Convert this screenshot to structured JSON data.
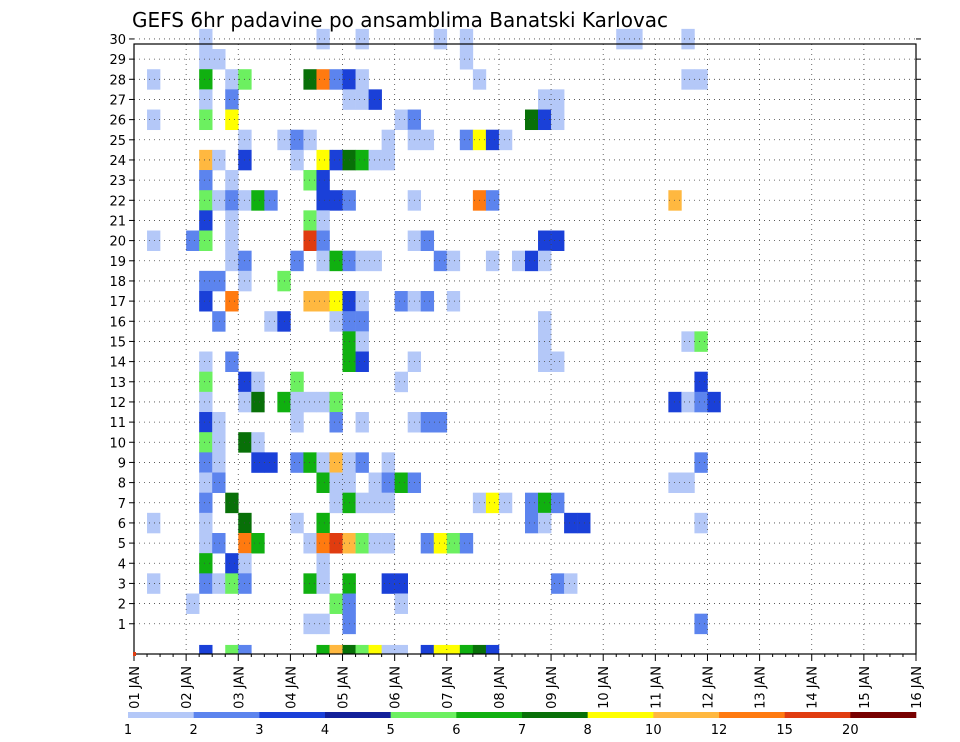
{
  "chart_data": {
    "type": "heatmap",
    "title": "GEFS 6hr padavine po ansamblima Banatski Karlovac",
    "x_tick_labels": [
      "01 JAN",
      "02 JAN",
      "03 JAN",
      "04 JAN",
      "05 JAN",
      "06 JAN",
      "07 JAN",
      "08 JAN",
      "09 JAN",
      "10 JAN",
      "11 JAN",
      "12 JAN",
      "13 JAN",
      "14 JAN",
      "15 JAN",
      "16 JAN"
    ],
    "y_tick_labels": [
      "1",
      "2",
      "3",
      "4",
      "5",
      "6",
      "7",
      "8",
      "9",
      "10",
      "11",
      "12",
      "13",
      "14",
      "15",
      "16",
      "17",
      "18",
      "19",
      "20",
      "21",
      "22",
      "23",
      "24",
      "25",
      "26",
      "27",
      "28",
      "29",
      "30"
    ],
    "xlim": [
      0,
      15
    ],
    "ylim": [
      0,
      30
    ],
    "grid": true,
    "colorbar": {
      "labels": [
        "1",
        "2",
        "3",
        "4",
        "5",
        "6",
        "7",
        "8",
        "10",
        "12",
        "15",
        "20"
      ],
      "colors": [
        "#b4c8f8",
        "#5c84ee",
        "#1a40d8",
        "#12209a",
        "#6cf060",
        "#10b010",
        "#087008",
        "#ffff00",
        "#ffb840",
        "#ff7a10",
        "#e03c10",
        "#780000"
      ]
    },
    "cells_note": "each cell: [member, time_step_index (6h steps from 01 JAN 00z), color_class_index 0-11]",
    "cells": [
      [
        30,
        5,
        0
      ],
      [
        30,
        14,
        0
      ],
      [
        30,
        17,
        0
      ],
      [
        30,
        23,
        0
      ],
      [
        30,
        25,
        0
      ],
      [
        30,
        37,
        0
      ],
      [
        30,
        38,
        0
      ],
      [
        30,
        42,
        0
      ],
      [
        29,
        5,
        0
      ],
      [
        29,
        6,
        0
      ],
      [
        29,
        25,
        0
      ],
      [
        28,
        1,
        0
      ],
      [
        28,
        5,
        5
      ],
      [
        28,
        7,
        0
      ],
      [
        28,
        8,
        4
      ],
      [
        28,
        13,
        6
      ],
      [
        28,
        14,
        9
      ],
      [
        28,
        15,
        1
      ],
      [
        28,
        16,
        2
      ],
      [
        28,
        17,
        0
      ],
      [
        28,
        26,
        0
      ],
      [
        28,
        42,
        0
      ],
      [
        28,
        43,
        0
      ],
      [
        27,
        5,
        0
      ],
      [
        27,
        7,
        1
      ],
      [
        27,
        16,
        0
      ],
      [
        27,
        17,
        0
      ],
      [
        27,
        18,
        2
      ],
      [
        27,
        31,
        0
      ],
      [
        27,
        32,
        0
      ],
      [
        26,
        1,
        0
      ],
      [
        26,
        5,
        4
      ],
      [
        26,
        7,
        7
      ],
      [
        26,
        20,
        0
      ],
      [
        26,
        21,
        1
      ],
      [
        26,
        30,
        6
      ],
      [
        26,
        31,
        2
      ],
      [
        26,
        32,
        0
      ],
      [
        25,
        8,
        0
      ],
      [
        25,
        11,
        0
      ],
      [
        25,
        12,
        1
      ],
      [
        25,
        13,
        0
      ],
      [
        25,
        19,
        0
      ],
      [
        25,
        21,
        0
      ],
      [
        25,
        22,
        0
      ],
      [
        25,
        25,
        1
      ],
      [
        25,
        26,
        7
      ],
      [
        25,
        27,
        2
      ],
      [
        25,
        28,
        0
      ],
      [
        24,
        5,
        8
      ],
      [
        24,
        6,
        0
      ],
      [
        24,
        8,
        2
      ],
      [
        24,
        12,
        0
      ],
      [
        24,
        14,
        7
      ],
      [
        24,
        15,
        2
      ],
      [
        24,
        16,
        6
      ],
      [
        24,
        17,
        5
      ],
      [
        24,
        18,
        0
      ],
      [
        24,
        19,
        0
      ],
      [
        23,
        5,
        1
      ],
      [
        23,
        7,
        0
      ],
      [
        23,
        13,
        4
      ],
      [
        23,
        14,
        2
      ],
      [
        22,
        5,
        4
      ],
      [
        22,
        6,
        0
      ],
      [
        22,
        7,
        1
      ],
      [
        22,
        8,
        0
      ],
      [
        22,
        9,
        5
      ],
      [
        22,
        10,
        1
      ],
      [
        22,
        14,
        2
      ],
      [
        22,
        15,
        2
      ],
      [
        22,
        16,
        1
      ],
      [
        22,
        21,
        0
      ],
      [
        22,
        26,
        9
      ],
      [
        22,
        27,
        1
      ],
      [
        22,
        41,
        8
      ],
      [
        21,
        5,
        2
      ],
      [
        21,
        7,
        0
      ],
      [
        21,
        13,
        4
      ],
      [
        21,
        14,
        0
      ],
      [
        20,
        1,
        0
      ],
      [
        20,
        4,
        1
      ],
      [
        20,
        5,
        4
      ],
      [
        20,
        7,
        0
      ],
      [
        20,
        13,
        10
      ],
      [
        20,
        14,
        1
      ],
      [
        20,
        21,
        0
      ],
      [
        20,
        22,
        1
      ],
      [
        20,
        31,
        2
      ],
      [
        20,
        32,
        2
      ],
      [
        19,
        7,
        0
      ],
      [
        19,
        8,
        1
      ],
      [
        19,
        12,
        1
      ],
      [
        19,
        14,
        0
      ],
      [
        19,
        15,
        5
      ],
      [
        19,
        16,
        1
      ],
      [
        19,
        17,
        0
      ],
      [
        19,
        18,
        0
      ],
      [
        19,
        23,
        1
      ],
      [
        19,
        24,
        0
      ],
      [
        19,
        27,
        0
      ],
      [
        19,
        29,
        0
      ],
      [
        19,
        30,
        2
      ],
      [
        19,
        31,
        0
      ],
      [
        18,
        5,
        1
      ],
      [
        18,
        6,
        1
      ],
      [
        18,
        8,
        0
      ],
      [
        18,
        11,
        4
      ],
      [
        17,
        5,
        2
      ],
      [
        17,
        7,
        9
      ],
      [
        17,
        13,
        8
      ],
      [
        17,
        14,
        8
      ],
      [
        17,
        15,
        7
      ],
      [
        17,
        16,
        2
      ],
      [
        17,
        17,
        0
      ],
      [
        17,
        20,
        1
      ],
      [
        17,
        21,
        0
      ],
      [
        17,
        22,
        1
      ],
      [
        17,
        24,
        0
      ],
      [
        16,
        6,
        1
      ],
      [
        16,
        10,
        0
      ],
      [
        16,
        11,
        2
      ],
      [
        16,
        15,
        0
      ],
      [
        16,
        16,
        1
      ],
      [
        16,
        17,
        1
      ],
      [
        16,
        31,
        0
      ],
      [
        15,
        16,
        5
      ],
      [
        15,
        17,
        0
      ],
      [
        15,
        31,
        0
      ],
      [
        15,
        42,
        0
      ],
      [
        15,
        43,
        4
      ],
      [
        14,
        5,
        0
      ],
      [
        14,
        7,
        1
      ],
      [
        14,
        16,
        5
      ],
      [
        14,
        17,
        2
      ],
      [
        14,
        21,
        0
      ],
      [
        14,
        31,
        0
      ],
      [
        14,
        32,
        0
      ],
      [
        13,
        5,
        4
      ],
      [
        13,
        8,
        2
      ],
      [
        13,
        9,
        0
      ],
      [
        13,
        12,
        4
      ],
      [
        13,
        20,
        0
      ],
      [
        13,
        43,
        2
      ],
      [
        12,
        5,
        0
      ],
      [
        12,
        8,
        0
      ],
      [
        12,
        9,
        6
      ],
      [
        12,
        11,
        5
      ],
      [
        12,
        12,
        0
      ],
      [
        12,
        13,
        0
      ],
      [
        12,
        14,
        0
      ],
      [
        12,
        15,
        4
      ],
      [
        12,
        41,
        2
      ],
      [
        12,
        42,
        0
      ],
      [
        12,
        43,
        1
      ],
      [
        12,
        44,
        2
      ],
      [
        11,
        5,
        2
      ],
      [
        11,
        6,
        0
      ],
      [
        11,
        12,
        0
      ],
      [
        11,
        15,
        1
      ],
      [
        11,
        17,
        0
      ],
      [
        11,
        21,
        0
      ],
      [
        11,
        22,
        1
      ],
      [
        11,
        23,
        1
      ],
      [
        10,
        5,
        4
      ],
      [
        10,
        6,
        0
      ],
      [
        10,
        8,
        6
      ],
      [
        10,
        9,
        0
      ],
      [
        9,
        5,
        1
      ],
      [
        9,
        6,
        0
      ],
      [
        9,
        9,
        2
      ],
      [
        9,
        10,
        2
      ],
      [
        9,
        12,
        1
      ],
      [
        9,
        13,
        5
      ],
      [
        9,
        14,
        0
      ],
      [
        9,
        15,
        8
      ],
      [
        9,
        16,
        0
      ],
      [
        9,
        17,
        1
      ],
      [
        9,
        19,
        0
      ],
      [
        9,
        43,
        1
      ],
      [
        8,
        5,
        0
      ],
      [
        8,
        6,
        1
      ],
      [
        8,
        14,
        5
      ],
      [
        8,
        15,
        0
      ],
      [
        8,
        16,
        0
      ],
      [
        8,
        18,
        0
      ],
      [
        8,
        19,
        1
      ],
      [
        8,
        20,
        5
      ],
      [
        8,
        21,
        1
      ],
      [
        8,
        41,
        0
      ],
      [
        8,
        42,
        0
      ],
      [
        7,
        5,
        1
      ],
      [
        7,
        7,
        6
      ],
      [
        7,
        15,
        0
      ],
      [
        7,
        16,
        5
      ],
      [
        7,
        17,
        0
      ],
      [
        7,
        18,
        0
      ],
      [
        7,
        19,
        0
      ],
      [
        7,
        26,
        0
      ],
      [
        7,
        27,
        7
      ],
      [
        7,
        28,
        0
      ],
      [
        7,
        30,
        1
      ],
      [
        7,
        31,
        5
      ],
      [
        7,
        32,
        1
      ],
      [
        6,
        1,
        0
      ],
      [
        6,
        5,
        0
      ],
      [
        6,
        8,
        6
      ],
      [
        6,
        12,
        0
      ],
      [
        6,
        14,
        5
      ],
      [
        6,
        30,
        1
      ],
      [
        6,
        31,
        0
      ],
      [
        6,
        33,
        2
      ],
      [
        6,
        34,
        2
      ],
      [
        6,
        43,
        0
      ],
      [
        5,
        5,
        0
      ],
      [
        5,
        6,
        1
      ],
      [
        5,
        8,
        9
      ],
      [
        5,
        9,
        5
      ],
      [
        5,
        13,
        0
      ],
      [
        5,
        14,
        9
      ],
      [
        5,
        15,
        10
      ],
      [
        5,
        16,
        8
      ],
      [
        5,
        17,
        4
      ],
      [
        5,
        18,
        0
      ],
      [
        5,
        19,
        0
      ],
      [
        5,
        22,
        1
      ],
      [
        5,
        23,
        7
      ],
      [
        5,
        24,
        4
      ],
      [
        5,
        25,
        1
      ],
      [
        4,
        5,
        5
      ],
      [
        4,
        7,
        2
      ],
      [
        4,
        8,
        0
      ],
      [
        4,
        14,
        0
      ],
      [
        3,
        1,
        0
      ],
      [
        3,
        5,
        1
      ],
      [
        3,
        6,
        0
      ],
      [
        3,
        7,
        4
      ],
      [
        3,
        8,
        1
      ],
      [
        3,
        13,
        5
      ],
      [
        3,
        14,
        0
      ],
      [
        3,
        16,
        5
      ],
      [
        3,
        19,
        2
      ],
      [
        3,
        20,
        2
      ],
      [
        3,
        32,
        1
      ],
      [
        3,
        33,
        0
      ],
      [
        2,
        4,
        0
      ],
      [
        2,
        15,
        4
      ],
      [
        2,
        16,
        1
      ],
      [
        2,
        20,
        0
      ],
      [
        1,
        13,
        0
      ],
      [
        1,
        14,
        0
      ],
      [
        1,
        16,
        1
      ],
      [
        1,
        43,
        1
      ],
      [
        0,
        5,
        2
      ],
      [
        0,
        7,
        4
      ],
      [
        0,
        8,
        1
      ],
      [
        0,
        14,
        5
      ],
      [
        0,
        15,
        8
      ],
      [
        0,
        16,
        6
      ],
      [
        0,
        17,
        4
      ],
      [
        0,
        18,
        7
      ],
      [
        0,
        19,
        0
      ],
      [
        0,
        20,
        0
      ],
      [
        0,
        22,
        2
      ],
      [
        0,
        23,
        7
      ],
      [
        0,
        24,
        7
      ],
      [
        0,
        25,
        5
      ],
      [
        0,
        26,
        6
      ],
      [
        0,
        27,
        2
      ]
    ]
  }
}
